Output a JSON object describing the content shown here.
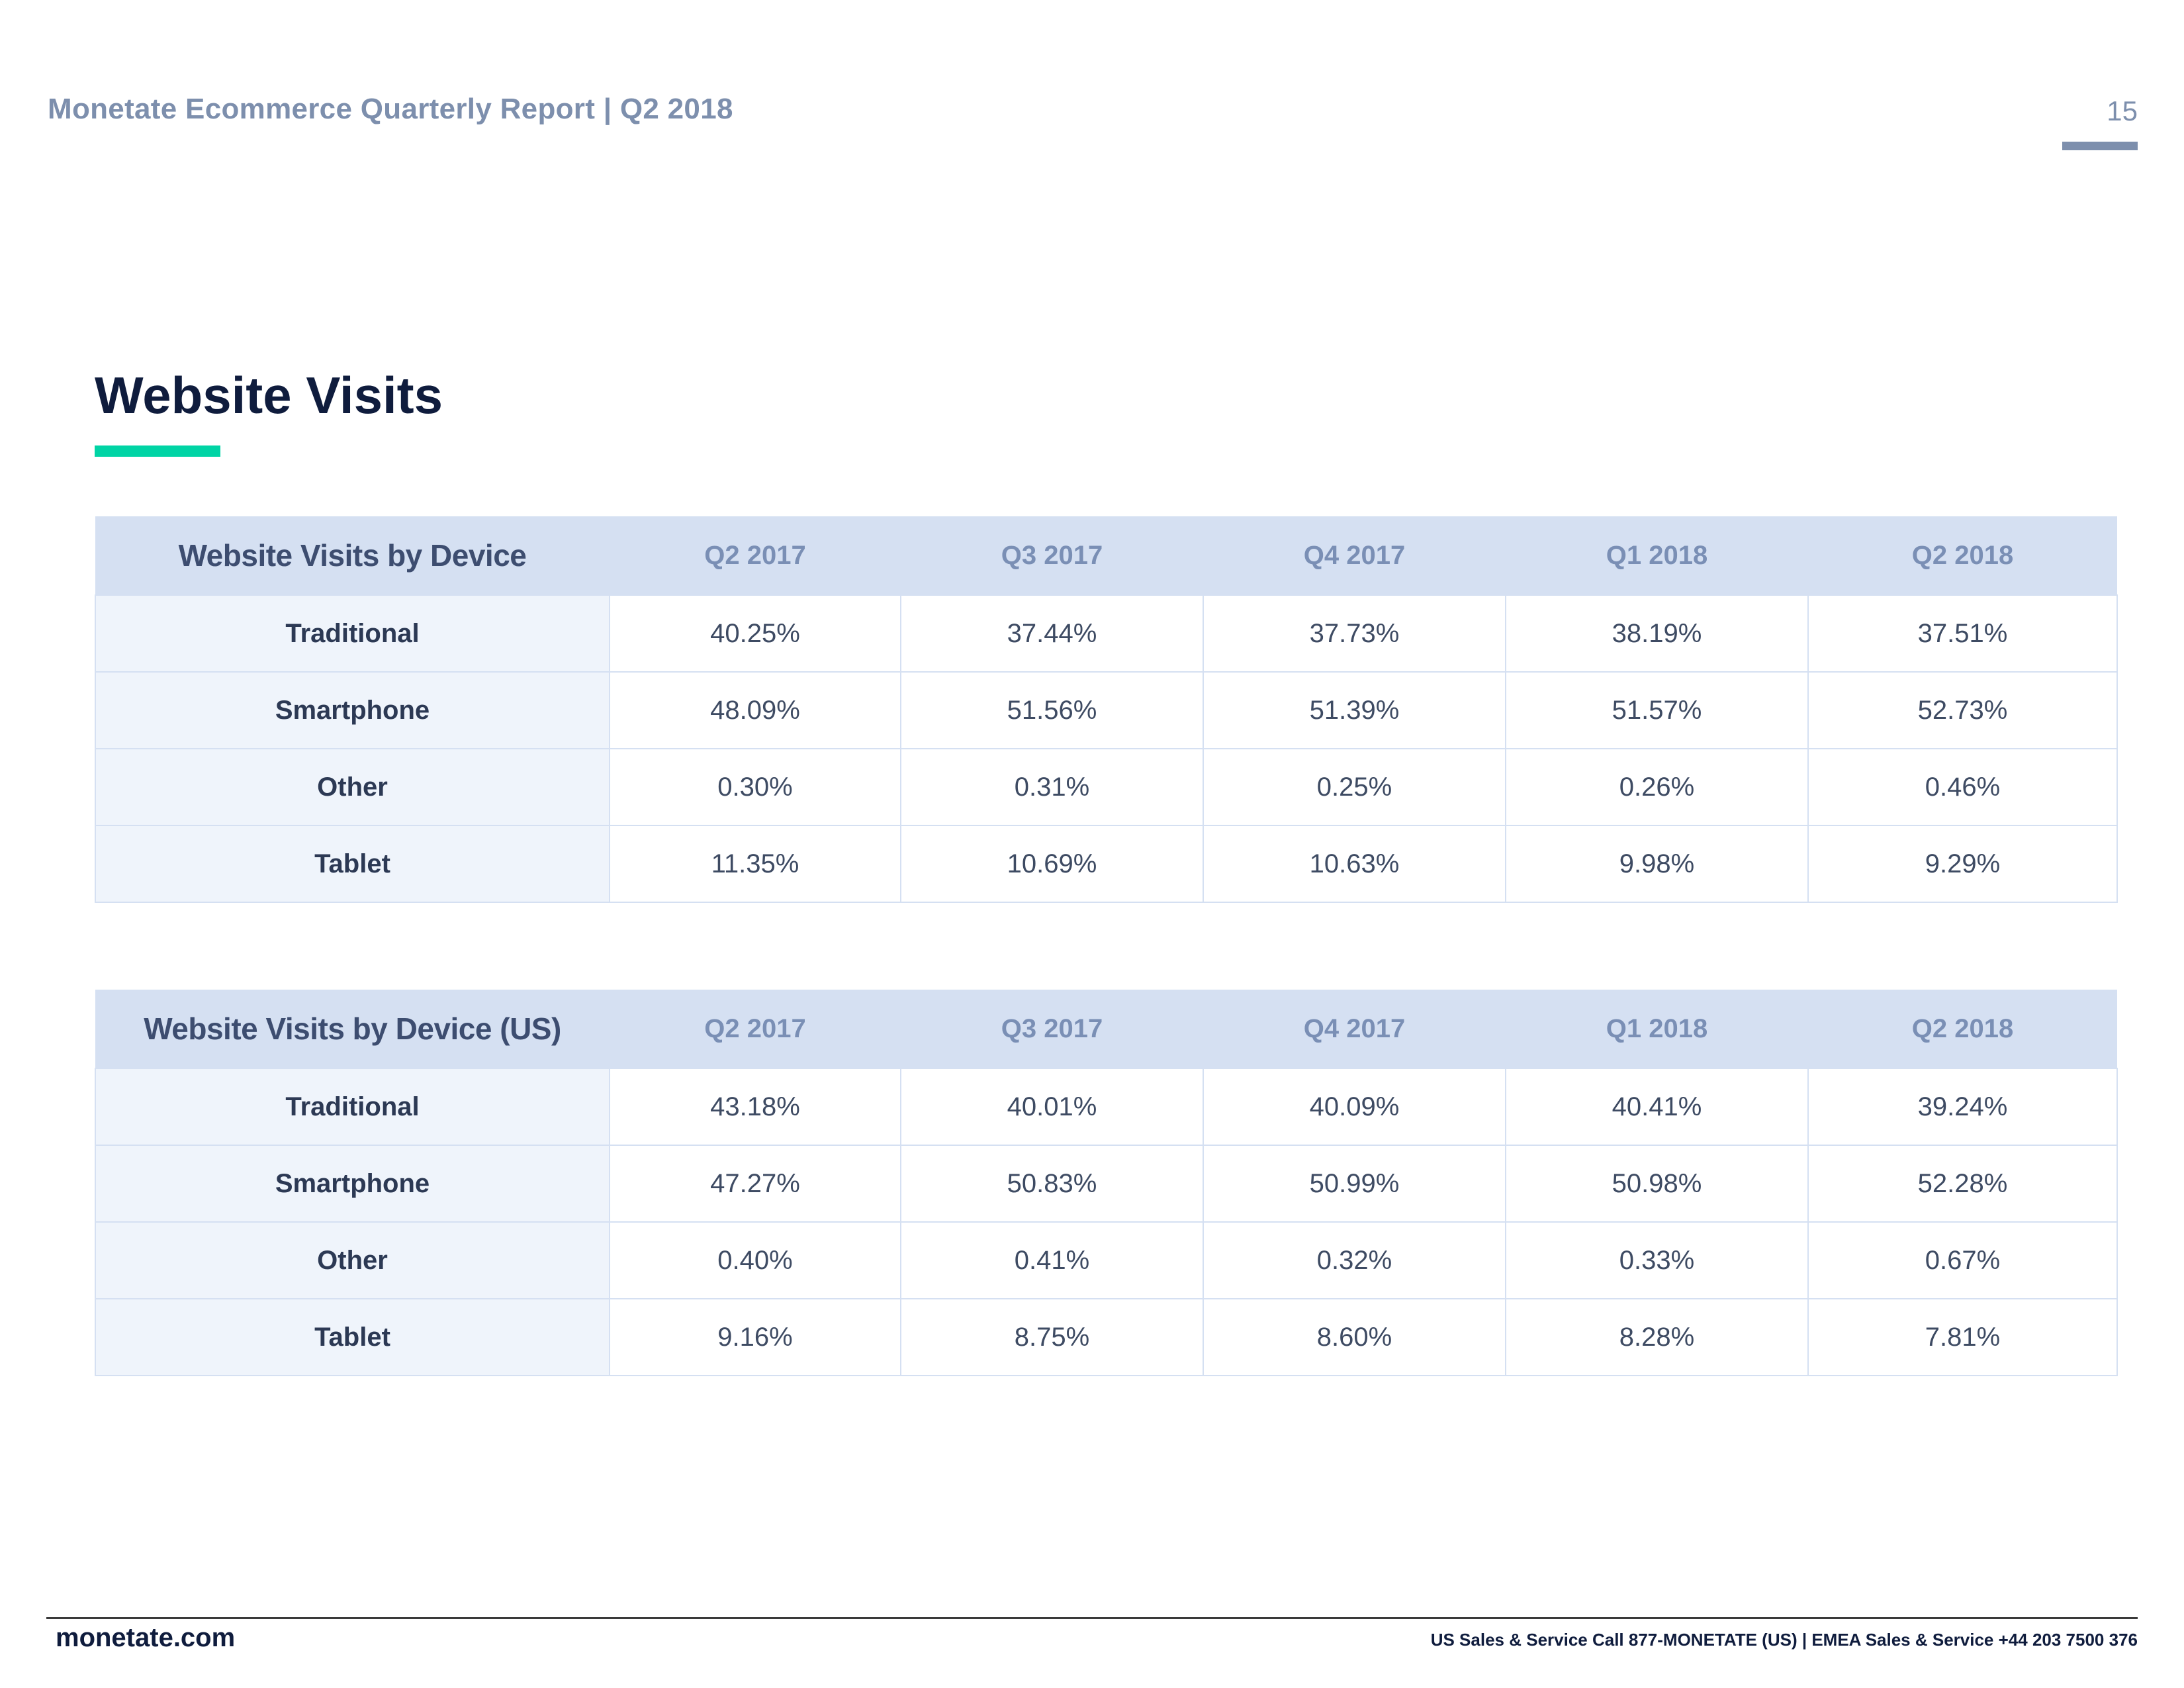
{
  "header": {
    "report_title": "Monetate Ecommerce Quarterly Report | Q2 2018",
    "page_number": "15"
  },
  "section": {
    "title": "Website Visits"
  },
  "tables": [
    {
      "title": "Website Visits by Device",
      "columns": [
        "Q2 2017",
        "Q3 2017",
        "Q4 2017",
        "Q1 2018",
        "Q2 2018"
      ],
      "rows": [
        {
          "label": "Traditional",
          "values": [
            "40.25%",
            "37.44%",
            "37.73%",
            "38.19%",
            "37.51%"
          ]
        },
        {
          "label": "Smartphone",
          "values": [
            "48.09%",
            "51.56%",
            "51.39%",
            "51.57%",
            "52.73%"
          ]
        },
        {
          "label": "Other",
          "values": [
            "0.30%",
            "0.31%",
            "0.25%",
            "0.26%",
            "0.46%"
          ]
        },
        {
          "label": "Tablet",
          "values": [
            "11.35%",
            "10.69%",
            "10.63%",
            "9.98%",
            "9.29%"
          ]
        }
      ]
    },
    {
      "title": "Website Visits by Device (US)",
      "columns": [
        "Q2 2017",
        "Q3 2017",
        "Q4 2017",
        "Q1 2018",
        "Q2 2018"
      ],
      "rows": [
        {
          "label": "Traditional",
          "values": [
            "43.18%",
            "40.01%",
            "40.09%",
            "40.41%",
            "39.24%"
          ]
        },
        {
          "label": "Smartphone",
          "values": [
            "47.27%",
            "50.83%",
            "50.99%",
            "50.98%",
            "52.28%"
          ]
        },
        {
          "label": "Other",
          "values": [
            "0.40%",
            "0.41%",
            "0.32%",
            "0.33%",
            "0.67%"
          ]
        },
        {
          "label": "Tablet",
          "values": [
            "9.16%",
            "8.75%",
            "8.60%",
            "8.28%",
            "7.81%"
          ]
        }
      ]
    }
  ],
  "footer": {
    "site": "monetate.com",
    "contact": "US Sales & Service Call 877-MONETATE (US) | EMEA Sales & Service +44 203 7500 376"
  },
  "colors": {
    "accent": "#00d4a5",
    "header_text": "#7d8fad",
    "title_text": "#0f1c3d",
    "table_header_bg": "#d5e0f2",
    "row_label_bg": "#eff4fb"
  }
}
